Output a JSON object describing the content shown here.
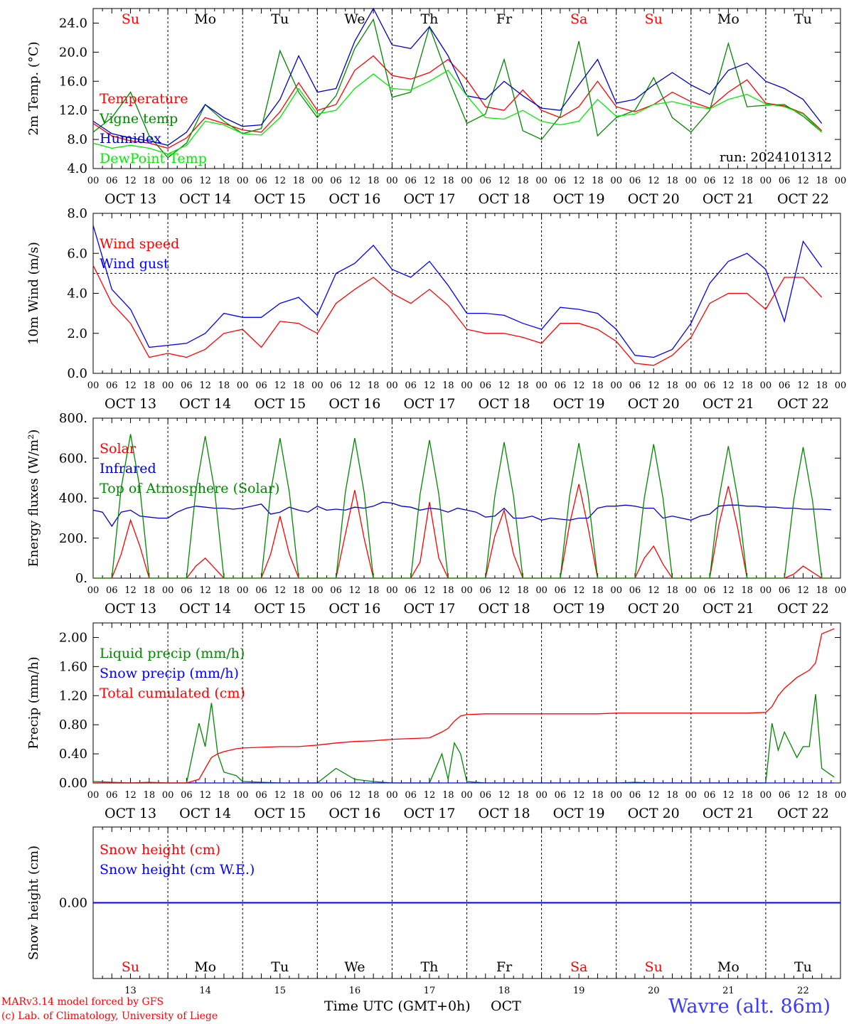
{
  "chart_data": [
    {
      "type": "line",
      "ylabel": "2m Temp. (°C)",
      "ylim": [
        4,
        26
      ],
      "yticks": [
        "4.0",
        "8.0",
        "12.0",
        "16.0",
        "20.0",
        "24.0"
      ],
      "annotation": "run: 2024101312",
      "x_hours_from_oct13_00": [
        0,
        6,
        12,
        18,
        24,
        30,
        36,
        42,
        48,
        54,
        60,
        66,
        72,
        78,
        84,
        90,
        96,
        102,
        108,
        114,
        120,
        126,
        132,
        138,
        144,
        150,
        156,
        162,
        168,
        174,
        180,
        186,
        192,
        198,
        204,
        210,
        216,
        222,
        228,
        234
      ],
      "series": [
        {
          "name": "Temperature",
          "color": "#ff0000",
          "values": [
            10.2,
            8.5,
            7.8,
            7.5,
            6.8,
            8.2,
            11.0,
            10.2,
            9.3,
            9.0,
            11.8,
            15.8,
            12.0,
            12.8,
            17.5,
            19.5,
            16.8,
            16.3,
            17.2,
            19.0,
            16.2,
            12.5,
            12.0,
            14.8,
            12.0,
            11.0,
            12.5,
            16.0,
            12.5,
            11.8,
            12.8,
            14.5,
            13.2,
            12.3,
            14.5,
            16.2,
            13.0,
            12.6,
            11.6,
            9.2
          ]
        },
        {
          "name": "Vigne temp",
          "color": "#008800",
          "values": [
            9.0,
            11.0,
            14.5,
            8.5,
            5.5,
            7.5,
            12.8,
            10.5,
            8.8,
            9.5,
            20.2,
            14.5,
            11.0,
            14.0,
            20.5,
            24.5,
            13.8,
            14.5,
            23.5,
            16.5,
            10.2,
            11.5,
            19.0,
            9.2,
            8.0,
            11.2,
            21.5,
            8.5,
            11.0,
            12.0,
            16.5,
            11.0,
            9.0,
            12.0,
            21.2,
            12.5,
            12.7,
            12.8,
            11.2,
            9.0
          ]
        },
        {
          "name": "Humidex",
          "color": "#0000cc",
          "values": [
            10.5,
            8.8,
            8.2,
            7.8,
            7.2,
            9.0,
            12.8,
            11.0,
            9.8,
            10.0,
            13.5,
            19.5,
            14.5,
            15.0,
            21.5,
            26.0,
            21.0,
            20.5,
            23.5,
            19.5,
            14.0,
            13.5,
            16.0,
            14.0,
            12.3,
            12.0,
            15.5,
            19.0,
            13.0,
            13.5,
            15.5,
            17.2,
            15.5,
            14.2,
            17.5,
            18.5,
            16.0,
            15.0,
            13.5,
            10.2
          ]
        },
        {
          "name": "DewPoint Temp",
          "color": "#00ee00",
          "values": [
            7.5,
            6.8,
            7.2,
            6.8,
            6.0,
            7.2,
            10.5,
            10.0,
            8.8,
            8.6,
            11.0,
            15.0,
            11.5,
            12.0,
            15.0,
            17.0,
            15.0,
            14.8,
            16.0,
            17.5,
            14.0,
            11.0,
            10.8,
            12.0,
            10.5,
            10.0,
            10.5,
            13.5,
            11.2,
            11.5,
            12.8,
            13.2,
            12.6,
            12.2,
            13.5,
            14.2,
            12.9,
            12.5,
            11.5,
            9.0
          ]
        }
      ]
    },
    {
      "type": "line",
      "ylabel": "10m Wind (m/s)",
      "ylim": [
        0,
        8
      ],
      "yticks": [
        "0.0",
        "2.0",
        "4.0",
        "6.0",
        "8.0"
      ],
      "reference_line": 5.0,
      "x_hours_from_oct13_00": [
        0,
        6,
        12,
        18,
        24,
        30,
        36,
        42,
        48,
        54,
        60,
        66,
        72,
        78,
        84,
        90,
        96,
        102,
        108,
        114,
        120,
        126,
        132,
        138,
        144,
        150,
        156,
        162,
        168,
        174,
        180,
        186,
        192,
        198,
        204,
        210,
        216,
        222,
        228,
        234
      ],
      "series": [
        {
          "name": "Wind speed",
          "color": "#ff0000",
          "values": [
            5.4,
            3.5,
            2.5,
            0.8,
            1.0,
            0.8,
            1.2,
            2.0,
            2.2,
            1.3,
            2.6,
            2.5,
            2.0,
            3.5,
            4.2,
            4.8,
            4.0,
            3.5,
            4.2,
            3.4,
            2.2,
            2.0,
            2.0,
            1.8,
            1.5,
            2.5,
            2.5,
            2.2,
            1.6,
            0.5,
            0.4,
            0.9,
            1.8,
            3.5,
            4.0,
            4.0,
            3.2,
            4.8,
            4.8,
            3.8
          ]
        },
        {
          "name": "Wind gust",
          "color": "#0000ff",
          "values": [
            7.4,
            4.2,
            3.2,
            1.3,
            1.4,
            1.5,
            2.0,
            3.0,
            2.8,
            2.8,
            3.5,
            3.8,
            2.9,
            5.0,
            5.5,
            6.4,
            5.2,
            4.8,
            5.6,
            4.4,
            3.0,
            3.0,
            2.9,
            2.5,
            2.2,
            3.3,
            3.2,
            3.0,
            2.2,
            0.9,
            0.8,
            1.2,
            2.5,
            4.5,
            5.6,
            6.0,
            5.2,
            2.6,
            6.6,
            5.3
          ]
        }
      ]
    },
    {
      "type": "line",
      "ylabel": "Energy fluxes (W/m²)",
      "ylim": [
        0,
        800
      ],
      "yticks": [
        "0.",
        "200.",
        "400.",
        "600.",
        "800."
      ],
      "x_hours_from_oct13_00": [
        0,
        3,
        6,
        9,
        12,
        15,
        18,
        21,
        24,
        27,
        30,
        33,
        36,
        39,
        42,
        45,
        48,
        51,
        54,
        57,
        60,
        63,
        66,
        69,
        72,
        75,
        78,
        81,
        84,
        87,
        90,
        93,
        96,
        99,
        102,
        105,
        108,
        111,
        114,
        117,
        120,
        123,
        126,
        129,
        132,
        135,
        138,
        141,
        144,
        147,
        150,
        153,
        156,
        159,
        162,
        165,
        168,
        171,
        174,
        177,
        180,
        183,
        186,
        189,
        192,
        195,
        198,
        201,
        204,
        207,
        210,
        213,
        216,
        219,
        222,
        225,
        228,
        231,
        234,
        237
      ],
      "series": [
        {
          "name": "Solar",
          "color": "#ff0000",
          "values": [
            0,
            0,
            0,
            120,
            290,
            160,
            0,
            0,
            0,
            0,
            0,
            60,
            100,
            50,
            0,
            0,
            0,
            0,
            0,
            120,
            310,
            120,
            0,
            0,
            0,
            0,
            0,
            220,
            440,
            200,
            0,
            0,
            0,
            0,
            0,
            80,
            380,
            100,
            0,
            0,
            0,
            0,
            0,
            210,
            340,
            120,
            0,
            0,
            0,
            0,
            0,
            270,
            470,
            250,
            0,
            0,
            0,
            0,
            0,
            100,
            160,
            70,
            0,
            0,
            0,
            0,
            0,
            270,
            460,
            250,
            0,
            0,
            0,
            0,
            0,
            20,
            60,
            30,
            0,
            0
          ]
        },
        {
          "name": "Infrared",
          "color": "#0000cc",
          "values": [
            340,
            330,
            260,
            330,
            340,
            310,
            305,
            300,
            300,
            330,
            350,
            360,
            355,
            350,
            350,
            345,
            350,
            360,
            370,
            320,
            330,
            355,
            340,
            330,
            360,
            340,
            345,
            340,
            355,
            350,
            360,
            380,
            375,
            360,
            355,
            340,
            350,
            345,
            330,
            350,
            340,
            330,
            305,
            310,
            350,
            300,
            300,
            310,
            290,
            300,
            295,
            290,
            300,
            300,
            350,
            360,
            360,
            365,
            360,
            350,
            350,
            300,
            310,
            300,
            290,
            310,
            320,
            360,
            365,
            365,
            360,
            360,
            355,
            355,
            350,
            350,
            345,
            345,
            345,
            342
          ]
        },
        {
          "name": "Top of Atmosphere (Solar)",
          "color": "#008800",
          "values": [
            0,
            0,
            0,
            450,
            720,
            450,
            0,
            0,
            0,
            0,
            0,
            440,
            710,
            440,
            0,
            0,
            0,
            0,
            0,
            430,
            700,
            430,
            0,
            0,
            0,
            0,
            0,
            430,
            700,
            430,
            0,
            0,
            0,
            0,
            0,
            420,
            690,
            420,
            0,
            0,
            0,
            0,
            0,
            410,
            680,
            410,
            0,
            0,
            0,
            0,
            0,
            410,
            675,
            410,
            0,
            0,
            0,
            0,
            0,
            400,
            670,
            400,
            0,
            0,
            0,
            0,
            0,
            400,
            660,
            400,
            0,
            0,
            0,
            0,
            0,
            390,
            655,
            390,
            0,
            0
          ]
        }
      ]
    },
    {
      "type": "line",
      "ylabel": "Precip (mm/h)",
      "ylim": [
        0,
        2.2
      ],
      "yticks": [
        "0.00",
        "0.40",
        "0.80",
        "1.20",
        "1.60",
        "2.00"
      ],
      "x_hours_from_oct13_00": [
        0,
        6,
        12,
        18,
        24,
        30,
        34,
        36,
        38,
        40,
        42,
        46,
        48,
        54,
        60,
        66,
        72,
        78,
        84,
        90,
        96,
        102,
        108,
        112,
        114,
        116,
        118,
        120,
        126,
        132,
        138,
        144,
        150,
        156,
        162,
        168,
        174,
        180,
        186,
        192,
        198,
        204,
        210,
        216,
        218,
        220,
        222,
        226,
        228,
        230,
        232,
        234,
        238
      ],
      "series": [
        {
          "name": "Liquid precip (mm/h)",
          "color": "#008800",
          "values": [
            0.02,
            0.01,
            0.0,
            0.01,
            0.0,
            0.0,
            0.82,
            0.5,
            1.1,
            0.4,
            0.15,
            0.1,
            0.02,
            0.01,
            0.0,
            0.0,
            0.0,
            0.2,
            0.05,
            0.02,
            0.0,
            0.0,
            0.0,
            0.4,
            0.05,
            0.55,
            0.4,
            0.02,
            0.0,
            0.0,
            0.0,
            0.0,
            0.0,
            0.0,
            0.0,
            0.0,
            0.01,
            0.0,
            0.0,
            0.0,
            0.0,
            0.0,
            0.0,
            0.0,
            0.82,
            0.45,
            0.7,
            0.35,
            0.5,
            0.5,
            1.22,
            0.2,
            0.08
          ]
        },
        {
          "name": "Snow precip (mm/h)",
          "color": "#0000ff",
          "values": [
            0,
            0,
            0,
            0,
            0,
            0,
            0,
            0,
            0,
            0,
            0,
            0,
            0,
            0,
            0,
            0,
            0,
            0,
            0,
            0,
            0,
            0,
            0,
            0,
            0,
            0,
            0,
            0,
            0,
            0,
            0,
            0,
            0,
            0,
            0,
            0,
            0,
            0,
            0,
            0,
            0,
            0,
            0,
            0,
            0,
            0,
            0,
            0,
            0,
            0,
            0,
            0,
            0
          ]
        },
        {
          "name": "Total cumulated (cm)",
          "color": "#ff0000",
          "values": [
            0.0,
            0.0,
            0.0,
            0.0,
            0.0,
            0.0,
            0.05,
            0.2,
            0.35,
            0.4,
            0.43,
            0.47,
            0.48,
            0.49,
            0.5,
            0.5,
            0.52,
            0.55,
            0.57,
            0.58,
            0.6,
            0.61,
            0.62,
            0.7,
            0.75,
            0.85,
            0.92,
            0.94,
            0.95,
            0.95,
            0.95,
            0.95,
            0.95,
            0.95,
            0.95,
            0.96,
            0.96,
            0.96,
            0.96,
            0.96,
            0.96,
            0.96,
            0.96,
            0.97,
            1.05,
            1.2,
            1.3,
            1.45,
            1.5,
            1.55,
            1.65,
            2.05,
            2.12
          ]
        }
      ]
    },
    {
      "type": "line",
      "ylabel": "Snow height (cm)",
      "ylim": [
        -1,
        1
      ],
      "yticks": [
        "0.00"
      ],
      "x_hours_from_oct13_00": [
        0,
        240
      ],
      "series": [
        {
          "name": "Snow height (cm)",
          "color": "#ff0000",
          "values": [
            0,
            0
          ]
        },
        {
          "name": "Snow height (cm W.E.)",
          "color": "#0000ff",
          "values": [
            0,
            0
          ]
        }
      ]
    }
  ],
  "time_axis": {
    "hour_labels": [
      "00",
      "06",
      "12",
      "18"
    ],
    "date_labels": [
      "OCT 13",
      "OCT 14",
      "OCT 15",
      "OCT 16",
      "OCT 17",
      "OCT 18",
      "OCT 19",
      "OCT 20",
      "OCT 21",
      "OCT 22"
    ],
    "weekdays": [
      {
        "label": "Su",
        "color": "#ff0000"
      },
      {
        "label": "Mo",
        "color": "#000000"
      },
      {
        "label": "Tu",
        "color": "#000000"
      },
      {
        "label": "We",
        "color": "#000000"
      },
      {
        "label": "Th",
        "color": "#000000"
      },
      {
        "label": "Fr",
        "color": "#000000"
      },
      {
        "label": "Sa",
        "color": "#ff0000"
      },
      {
        "label": "Su",
        "color": "#ff0000"
      },
      {
        "label": "Mo",
        "color": "#000000"
      },
      {
        "label": "Tu",
        "color": "#000000"
      }
    ],
    "day_numbers": [
      "13",
      "14",
      "15",
      "16",
      "17",
      "18",
      "19",
      "20",
      "21",
      "22"
    ],
    "xlabel": "Time UTC (GMT+0h)",
    "month": "OCT"
  },
  "footer": {
    "model_line": "MARv3.14 model forced by GFS",
    "copyright_line": "(c) Lab. of Climatology, University of Liege",
    "site": "Wavre (alt. 86m)"
  }
}
